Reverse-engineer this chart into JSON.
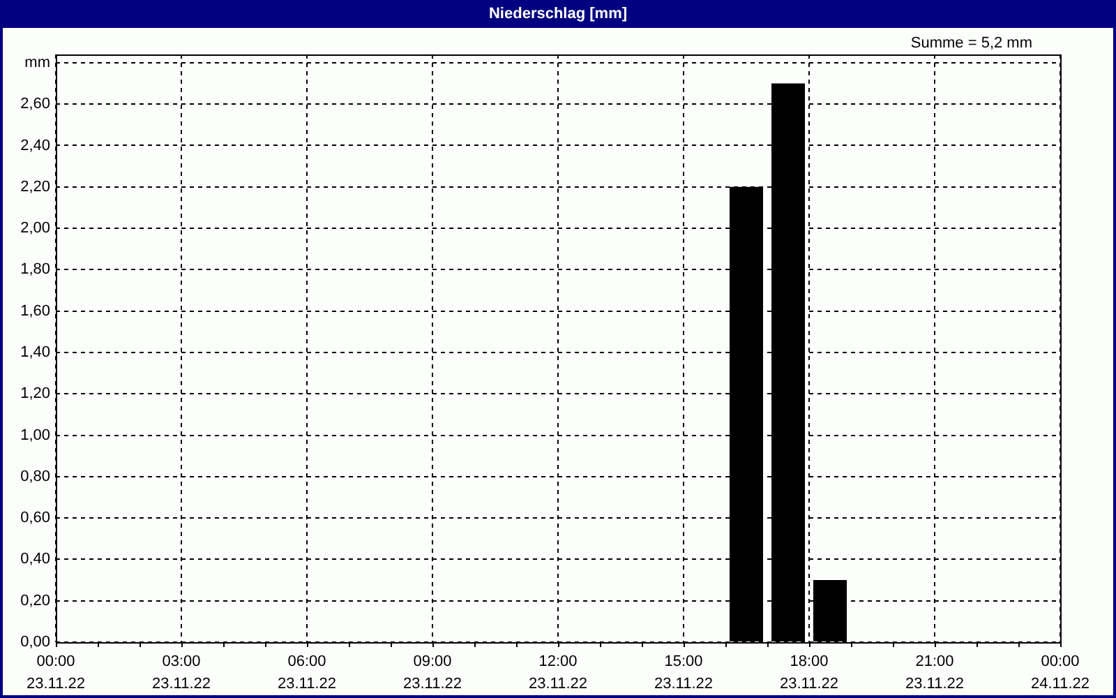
{
  "chart_data": {
    "type": "bar",
    "title": "Niederschlag [mm]",
    "annotations": [
      "Summe = 5,2 mm"
    ],
    "x": [
      "--11-23T16:30",
      "--11-23T17:30",
      "--11-23T18:30"
    ],
    "values": [
      2.2,
      2.7,
      0.3
    ],
    "color": "#000000",
    "xlim": [
      "--11-23T00:00",
      "--11-24T00:00"
    ],
    "xticks": [
      {
        "value": "--11-23T00:00",
        "label": "00:00\n23.11.22"
      },
      {
        "value": "--11-23T01:00",
        "label": null
      },
      {
        "value": "--11-23T02:00",
        "label": null
      },
      {
        "value": "--11-23T03:00",
        "label": "03:00\n23.11.22"
      },
      {
        "value": "--11-23T04:00",
        "label": null
      },
      {
        "value": "--11-23T05:00",
        "label": null
      },
      {
        "value": "--11-23T06:00",
        "label": "06:00\n23.11.22"
      },
      {
        "value": "--11-23T07:00",
        "label": null
      },
      {
        "value": "--11-23T08:00",
        "label": null
      },
      {
        "value": "--11-23T09:00",
        "label": "09:00\n23.11.22"
      },
      {
        "value": "--11-23T10:00",
        "label": null
      },
      {
        "value": "--11-23T11:00",
        "label": null
      },
      {
        "value": "--11-23T12:00",
        "label": "12:00\n23.11.22"
      },
      {
        "value": "--11-23T13:00",
        "label": null
      },
      {
        "value": "--11-23T14:00",
        "label": null
      },
      {
        "value": "--11-23T15:00",
        "label": "15:00\n23.11.22"
      },
      {
        "value": "--11-23T16:00",
        "label": null
      },
      {
        "value": "--11-23T17:00",
        "label": null
      },
      {
        "value": "--11-23T18:00",
        "label": "18:00\n23.11.22"
      },
      {
        "value": "--11-23T19:00",
        "label": null
      },
      {
        "value": "--11-23T20:00",
        "label": null
      },
      {
        "value": "--11-23T21:00",
        "label": "21:00\n23.11.22"
      },
      {
        "value": "--11-23T22:00",
        "label": null
      },
      {
        "value": "--11-23T23:00",
        "label": null
      },
      {
        "value": "--11-24T00:00",
        "label": "00:00\n24.11.22"
      }
    ],
    "ylim": [
      0,
      2.84
    ],
    "yticks": [
      {
        "value": 0,
        "label": "0,00"
      },
      {
        "value": 0.2,
        "label": "0,20"
      },
      {
        "value": 0.4,
        "label": "0,40"
      },
      {
        "value": 0.6,
        "label": "0,60"
      },
      {
        "value": 0.8,
        "label": "0,80"
      },
      {
        "value": 1,
        "label": "1,00"
      },
      {
        "value": 1.2,
        "label": "1,20"
      },
      {
        "value": 1.4,
        "label": "1,40"
      },
      {
        "value": 1.6,
        "label": "1,60"
      },
      {
        "value": 1.8,
        "label": "1,80"
      },
      {
        "value": 2,
        "label": "2,00"
      },
      {
        "value": 2.2,
        "label": "2,20"
      },
      {
        "value": 2.4,
        "label": "2,40"
      },
      {
        "value": 2.6,
        "label": "2,60"
      },
      {
        "value": 2.8,
        "label": "mm"
      }
    ],
    "grid": true
  }
}
